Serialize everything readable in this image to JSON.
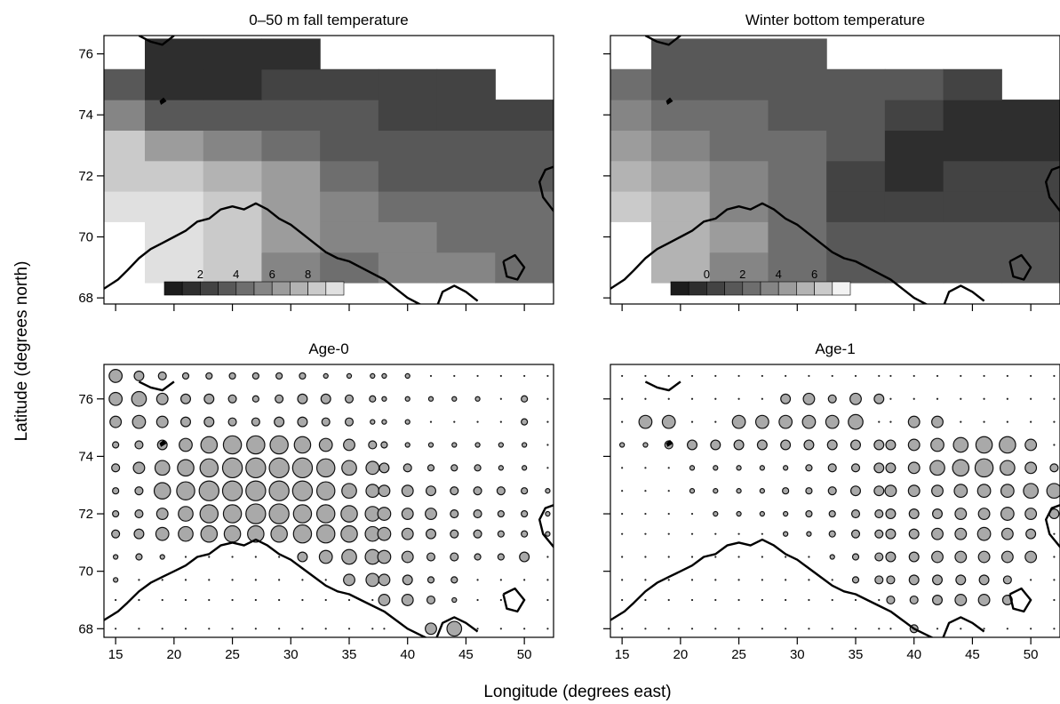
{
  "figure": {
    "xlabel": "Longitude (degrees east)",
    "ylabel": "Latitude (degrees north)",
    "xticks": [
      15,
      20,
      25,
      30,
      35,
      40,
      45,
      50
    ],
    "yticks": [
      68,
      70,
      72,
      74,
      76
    ],
    "xlim": [
      14.0,
      52.5
    ],
    "ylim_top_row": [
      67.8,
      76.6
    ],
    "ylim_bottom_row": [
      67.7,
      77.2
    ]
  },
  "chart_data": [
    {
      "type": "heatmap",
      "title": "0–50 m fall temperature",
      "colorbar": {
        "ticks": [
          "2",
          "4",
          "6",
          "8"
        ],
        "range": [
          0,
          10
        ],
        "levels": 10,
        "shades": [
          "#1c1c1c",
          "#2e2e2e",
          "#434343",
          "#585858",
          "#6e6e6e",
          "#858585",
          "#9c9c9c",
          "#b3b3b3",
          "#cacaca",
          "#e0e0e0"
        ]
      },
      "summary": "Coldest (~1–2 °C) in the north-west near 74–75°N 18–24°E and along the northern edge; warmest (~8–9 °C) in the south-west off the Norwegian coast (70–72°N, 15–25°E); intermediate (~4–6 °C) in the south-east.",
      "grid": {
        "lon": [
          15,
          20,
          25,
          30,
          35,
          40,
          45,
          50
        ],
        "lat": [
          69,
          70,
          71,
          72,
          73,
          74,
          75,
          76
        ],
        "values": [
          [
            null,
            9,
            8.5,
            5,
            4.5,
            5,
            5,
            4.5
          ],
          [
            null,
            9,
            8.5,
            6,
            5,
            5,
            4.5,
            4.5
          ],
          [
            9,
            9,
            8,
            6.5,
            5,
            4,
            4,
            4
          ],
          [
            8.5,
            8.5,
            7,
            6,
            4,
            3,
            3.5,
            3.5
          ],
          [
            8,
            6.5,
            5,
            4.5,
            3.5,
            3,
            3,
            3
          ],
          [
            5.5,
            3,
            3,
            3.5,
            3,
            2.5,
            2.5,
            2.5
          ],
          [
            3,
            1.5,
            1.5,
            2,
            2.5,
            2,
            2,
            null
          ],
          [
            null,
            1,
            1,
            1.5,
            null,
            null,
            null,
            null
          ]
        ]
      }
    },
    {
      "type": "heatmap",
      "title": "Winter bottom temperature",
      "colorbar": {
        "ticks": [
          "0",
          "2",
          "4",
          "6"
        ],
        "range": [
          -2,
          8
        ],
        "levels": 10,
        "shades": [
          "#1c1c1c",
          "#2e2e2e",
          "#434343",
          "#585858",
          "#6e6e6e",
          "#858585",
          "#9c9c9c",
          "#b3b3b3",
          "#cacaca",
          "#f2f2f2"
        ]
      },
      "summary": "Warmest (~5–7 °C) in the south-west near the coast; cold (~-1–0 °C) water across the east and north-east (72–75°N, 35–50°E).",
      "grid": {
        "lon": [
          15,
          20,
          25,
          30,
          35,
          40,
          45,
          50
        ],
        "lat": [
          69,
          70,
          71,
          72,
          73,
          74,
          75,
          76
        ],
        "values": [
          [
            null,
            5,
            3.5,
            2,
            1.5,
            1.5,
            1.5,
            1
          ],
          [
            null,
            5.5,
            4,
            2,
            1,
            1,
            1,
            1
          ],
          [
            6.5,
            5.5,
            3.5,
            2,
            0.5,
            0,
            0.5,
            0.5
          ],
          [
            5.5,
            4.5,
            3,
            2,
            0,
            -0.5,
            0,
            0
          ],
          [
            4.5,
            3,
            2.5,
            2,
            1,
            -0.5,
            -0.5,
            -0.5
          ],
          [
            3,
            2,
            2,
            1.5,
            1.5,
            0,
            -1,
            -1
          ],
          [
            2,
            1,
            1,
            1,
            1.5,
            1,
            0,
            null
          ],
          [
            null,
            1,
            1,
            1,
            null,
            null,
            null,
            null
          ]
        ]
      }
    },
    {
      "type": "scatter",
      "title": "Age-0",
      "size_meaning": "relative abundance (circle size, 0–10 scale)",
      "lon": [
        15,
        17,
        19,
        21,
        23,
        25,
        27,
        29,
        31,
        33,
        35,
        37,
        38,
        40,
        42,
        44,
        46,
        48,
        50,
        52
      ],
      "lat": [
        68,
        69,
        70,
        71,
        72,
        73,
        74,
        75,
        76,
        77
      ],
      "sizes": [
        [
          0,
          0,
          0,
          0,
          0,
          0,
          0,
          0,
          0,
          0,
          0,
          0,
          0,
          0,
          5,
          7,
          0,
          0,
          0,
          0
        ],
        [
          0,
          0,
          0,
          0,
          0,
          0,
          0,
          0,
          0,
          0,
          0,
          0,
          5,
          5,
          3,
          1,
          0,
          0,
          0,
          0
        ],
        [
          1,
          0,
          0,
          0,
          0,
          0,
          0,
          0,
          0,
          0,
          5,
          6,
          5,
          4,
          2,
          2,
          0,
          0,
          0,
          0
        ],
        [
          1,
          2,
          1,
          0,
          0,
          0,
          0,
          0,
          4,
          6,
          7,
          7,
          6,
          5,
          3,
          3,
          2,
          2,
          4,
          0
        ],
        [
          3,
          4,
          6,
          7,
          8,
          8,
          8,
          8,
          9,
          9,
          8,
          7,
          6,
          5,
          4,
          3,
          3,
          2,
          2,
          1
        ],
        [
          2,
          3,
          5,
          7,
          9,
          9,
          10,
          10,
          9,
          9,
          8,
          7,
          6,
          5,
          5,
          3,
          3,
          2,
          2,
          1
        ],
        [
          2,
          3,
          8,
          9,
          10,
          10,
          10,
          10,
          10,
          9,
          7,
          6,
          5,
          5,
          4,
          3,
          3,
          3,
          2,
          1
        ],
        [
          3,
          5,
          7,
          8,
          9,
          10,
          10,
          10,
          10,
          9,
          7,
          6,
          4,
          3,
          2,
          2,
          2,
          1,
          1,
          0
        ],
        [
          2,
          3,
          4,
          6,
          8,
          9,
          9,
          9,
          8,
          6,
          5,
          3,
          2,
          1,
          1,
          1,
          1,
          1,
          1,
          0
        ],
        [
          5,
          6,
          5,
          4,
          4,
          3,
          3,
          4,
          4,
          3,
          3,
          1,
          1,
          1,
          0,
          0,
          0,
          0,
          2,
          0
        ],
        [
          6,
          7,
          5,
          4,
          4,
          3,
          2,
          3,
          4,
          4,
          3,
          2,
          1,
          1,
          1,
          1,
          1,
          0,
          2,
          0
        ],
        [
          6,
          4,
          3,
          2,
          2,
          2,
          2,
          2,
          2,
          1,
          1,
          1,
          1,
          1,
          0,
          0,
          0,
          0,
          0,
          0
        ]
      ],
      "row_lat": [
        68,
        69,
        69.7,
        70.5,
        71.3,
        72,
        72.8,
        73.6,
        74.4,
        75.2,
        76,
        76.8
      ]
    },
    {
      "type": "scatter",
      "title": "Age-1",
      "size_meaning": "relative abundance (circle size, 0–10 scale)",
      "lon": [
        15,
        17,
        19,
        21,
        23,
        25,
        27,
        29,
        31,
        33,
        35,
        37,
        38,
        40,
        42,
        44,
        46,
        48,
        50,
        52
      ],
      "sizes": [
        [
          0,
          0,
          0,
          0,
          0,
          0,
          0,
          0,
          0,
          0,
          0,
          0,
          0,
          3,
          0,
          0,
          0,
          0,
          0,
          0
        ],
        [
          0,
          0,
          0,
          0,
          0,
          0,
          0,
          0,
          0,
          0,
          0,
          0,
          3,
          3,
          4,
          5,
          5,
          4,
          0,
          0
        ],
        [
          0,
          0,
          0,
          0,
          0,
          0,
          0,
          0,
          0,
          0,
          2,
          3,
          3,
          4,
          4,
          4,
          4,
          3,
          0,
          0
        ],
        [
          0,
          0,
          0,
          0,
          0,
          0,
          0,
          0,
          0,
          1,
          2,
          3,
          4,
          4,
          5,
          5,
          5,
          5,
          5,
          0
        ],
        [
          0,
          0,
          0,
          0,
          0,
          0,
          0,
          1,
          1,
          2,
          3,
          3,
          4,
          4,
          5,
          5,
          6,
          5,
          4,
          0
        ],
        [
          0,
          0,
          0,
          0,
          1,
          1,
          1,
          1,
          2,
          2,
          3,
          3,
          4,
          4,
          4,
          5,
          5,
          6,
          5,
          4
        ],
        [
          0,
          0,
          0,
          1,
          1,
          1,
          1,
          2,
          2,
          3,
          4,
          4,
          5,
          5,
          5,
          6,
          6,
          6,
          7,
          7
        ],
        [
          0,
          0,
          0,
          1,
          1,
          1,
          1,
          1,
          2,
          3,
          3,
          4,
          4,
          5,
          7,
          8,
          9,
          7,
          5,
          3
        ],
        [
          1,
          1,
          3,
          4,
          4,
          4,
          4,
          4,
          4,
          4,
          4,
          4,
          4,
          5,
          6,
          7,
          8,
          8,
          5,
          0
        ],
        [
          0,
          6,
          6,
          0,
          0,
          6,
          6,
          6,
          6,
          6,
          7,
          0,
          0,
          5,
          5,
          0,
          0,
          0,
          0,
          0
        ],
        [
          0,
          0,
          0,
          0,
          0,
          0,
          0,
          4,
          5,
          3,
          5,
          4,
          0,
          0,
          0,
          0,
          0,
          0,
          0,
          0
        ],
        [
          0,
          0,
          0,
          0,
          0,
          0,
          0,
          0,
          0,
          0,
          0,
          0,
          0,
          0,
          0,
          0,
          0,
          0,
          0,
          0
        ]
      ],
      "row_lat": [
        68,
        69,
        69.7,
        70.5,
        71.3,
        72,
        72.8,
        73.6,
        74.4,
        75.2,
        76,
        76.8
      ]
    }
  ]
}
